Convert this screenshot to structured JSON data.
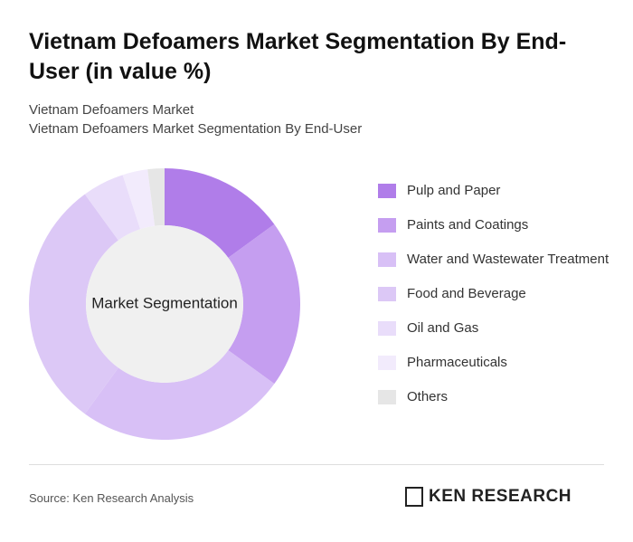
{
  "chart_data": {
    "type": "donut",
    "title": "Vietnam Defoamers Market Segmentation By End-User (in value %)",
    "subtitle": [
      "Vietnam Defoamers Market",
      "Vietnam Defoamers Market Segmentation By End-User"
    ],
    "center_label": "Market Segmentation",
    "categories": [
      "Pulp and Paper",
      "Paints and Coatings",
      "Water and Wastewater Treatment",
      "Food and Beverage",
      "Oil and Gas",
      "Pharmaceuticals",
      "Others"
    ],
    "values": [
      15,
      20,
      25,
      30,
      5,
      3,
      2
    ],
    "colors": [
      "#b07de9",
      "#c59ef0",
      "#d8c0f6",
      "#dcc8f6",
      "#e9ddfa",
      "#f2ebfc",
      "#e6e6e6"
    ],
    "legend": "right"
  },
  "footer": {
    "source": "Source: Ken Research Analysis",
    "logo": "KEN RESEARCH"
  }
}
